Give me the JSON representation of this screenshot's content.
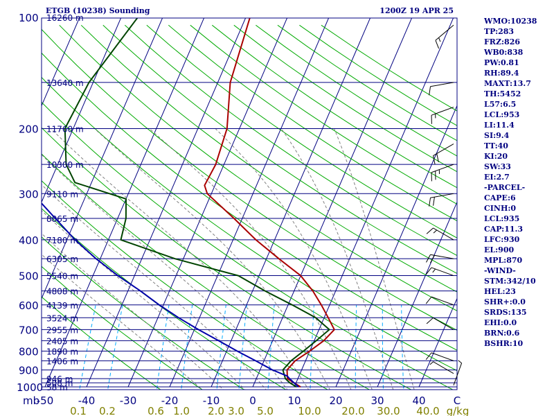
{
  "header": {
    "station": "ETGB (10238) Sounding",
    "time": "1200Z 19 APR 25"
  },
  "stats": [
    "WMO:10238",
    "TP:283",
    "FRZ:826",
    "WB0:838",
    "PW:0.81",
    "RH:89.4",
    "MAXT:13.7",
    "TH:5452",
    "L57:6.5",
    "LCL:953",
    "LI:11.4",
    "SI:9.4",
    "TT:40",
    "KI:20",
    "SW:33",
    "EI:2.7",
    "-PARCEL-",
    "CAPE:6",
    "CINH:0",
    "LCL:935",
    "CAP:11.3",
    "LFC:930",
    "EL:900",
    "MPL:870",
    "-WIND-",
    "STM:342/10",
    "HEL:23",
    "SHR+:0.0",
    "SRDS:135",
    "EHI:0.0",
    "BRN:0.6",
    "BSHR:10"
  ],
  "colors": {
    "isobar": "#000080",
    "isotherm": "#000080",
    "dry_adiabat": "#00aa00",
    "moist_adiabat": "#808080",
    "mixing_ratio": "#00aaff",
    "temperature": "#aa0000",
    "dewpoint": "#004400",
    "parcel": "#0000aa",
    "wind_barb": "#000000"
  },
  "chart_data": {
    "type": "skew-t",
    "pressure_axis": {
      "unit_label": "mb",
      "levels": [
        1000,
        900,
        800,
        700,
        600,
        500,
        400,
        300,
        200,
        100
      ],
      "log_scale": true,
      "range": [
        1000,
        100
      ]
    },
    "height_labels": [
      {
        "p": 1000,
        "label": "58 m"
      },
      {
        "p": 975,
        "label": "508 m"
      },
      {
        "p": 950,
        "label": "946 m"
      },
      {
        "p": 850,
        "label": "1406 m"
      },
      {
        "p": 800,
        "label": "1890 m"
      },
      {
        "p": 750,
        "label": "2405 m"
      },
      {
        "p": 700,
        "label": "2955 m"
      },
      {
        "p": 650,
        "label": "3524 m"
      },
      {
        "p": 600,
        "label": "4139 m"
      },
      {
        "p": 550,
        "label": "4808 m"
      },
      {
        "p": 500,
        "label": "5540 m"
      },
      {
        "p": 450,
        "label": "6305 m"
      },
      {
        "p": 400,
        "label": "7180 m"
      },
      {
        "p": 350,
        "label": "8065 m"
      },
      {
        "p": 300,
        "label": "9110 m"
      },
      {
        "p": 250,
        "label": "10300 m"
      },
      {
        "p": 200,
        "label": "11760 m"
      },
      {
        "p": 150,
        "label": "13640 m"
      },
      {
        "p": 100,
        "label": "16260 m"
      }
    ],
    "temperature_axis": {
      "unit": "C",
      "ticks": [
        "-50",
        "-40",
        "-30",
        "-20",
        "-10",
        "0",
        "10",
        "20",
        "30",
        "40"
      ],
      "tick_values": [
        -50,
        -40,
        -30,
        -20,
        -10,
        0,
        10,
        20,
        30,
        40
      ],
      "unit_label": "C",
      "skewed": true
    },
    "mixing_ratio_axis": {
      "unit": "g/kg",
      "ticks": [
        "0.1",
        "0.2",
        "0.6",
        "1.0",
        "2.0",
        "3.0",
        "5.0",
        "10.0",
        "20.0",
        "30.0",
        "40.0"
      ],
      "unit_label": "g/kg"
    },
    "series": [
      {
        "key": "temperature",
        "points": [
          [
            1000,
            11.5
          ],
          [
            975,
            9.5
          ],
          [
            950,
            7.5
          ],
          [
            900,
            6.5
          ],
          [
            850,
            7.5
          ],
          [
            800,
            10
          ],
          [
            750,
            12.3
          ],
          [
            700,
            13.7
          ],
          [
            650,
            11
          ],
          [
            600,
            8
          ],
          [
            550,
            4.5
          ],
          [
            500,
            0
          ],
          [
            450,
            -7
          ],
          [
            400,
            -14.5
          ],
          [
            350,
            -22
          ],
          [
            300,
            -31
          ],
          [
            285,
            -32.5
          ],
          [
            250,
            -32
          ],
          [
            200,
            -33
          ],
          [
            150,
            -37
          ],
          [
            100,
            -39
          ]
        ]
      },
      {
        "key": "dewpoint",
        "points": [
          [
            1000,
            10.5
          ],
          [
            975,
            8.5
          ],
          [
            950,
            7
          ],
          [
            900,
            5.5
          ],
          [
            850,
            6.5
          ],
          [
            800,
            8.5
          ],
          [
            750,
            10.5
          ],
          [
            700,
            12.5
          ],
          [
            650,
            8
          ],
          [
            600,
            1
          ],
          [
            550,
            -7
          ],
          [
            500,
            -15
          ],
          [
            450,
            -32
          ],
          [
            400,
            -47
          ],
          [
            350,
            -48
          ],
          [
            310,
            -50
          ],
          [
            280,
            -64
          ],
          [
            250,
            -68
          ],
          [
            200,
            -72
          ],
          [
            150,
            -71
          ],
          [
            100,
            -66
          ]
        ]
      },
      {
        "key": "parcel",
        "points": [
          [
            1000,
            11
          ],
          [
            950,
            8
          ],
          [
            935,
            7.2
          ],
          [
            900,
            3
          ],
          [
            850,
            -2
          ],
          [
            800,
            -7.5
          ],
          [
            750,
            -13
          ],
          [
            700,
            -19
          ],
          [
            650,
            -25
          ],
          [
            600,
            -31
          ],
          [
            550,
            -37
          ],
          [
            500,
            -44
          ],
          [
            450,
            -51
          ],
          [
            400,
            -58
          ],
          [
            350,
            -65
          ],
          [
            300,
            -73
          ],
          [
            250,
            -81
          ],
          [
            200,
            -89
          ],
          [
            150,
            -98
          ],
          [
            100,
            -111
          ]
        ]
      }
    ],
    "wind_barbs": [
      {
        "p": 990,
        "dir": 20,
        "kt": 5
      },
      {
        "p": 920,
        "dir": 300,
        "kt": 5
      },
      {
        "p": 850,
        "dir": 290,
        "kt": 10
      },
      {
        "p": 700,
        "dir": 300,
        "kt": 10
      },
      {
        "p": 600,
        "dir": 290,
        "kt": 10
      },
      {
        "p": 500,
        "dir": 290,
        "kt": 15
      },
      {
        "p": 450,
        "dir": 280,
        "kt": 20
      },
      {
        "p": 400,
        "dir": 300,
        "kt": 15
      },
      {
        "p": 300,
        "dir": 260,
        "kt": 20
      },
      {
        "p": 250,
        "dir": 250,
        "kt": 25
      },
      {
        "p": 220,
        "dir": 240,
        "kt": 20
      },
      {
        "p": 175,
        "dir": 250,
        "kt": 15
      },
      {
        "p": 150,
        "dir": 260,
        "kt": 10
      },
      {
        "p": 105,
        "dir": 230,
        "kt": 15
      }
    ],
    "grid": true
  }
}
